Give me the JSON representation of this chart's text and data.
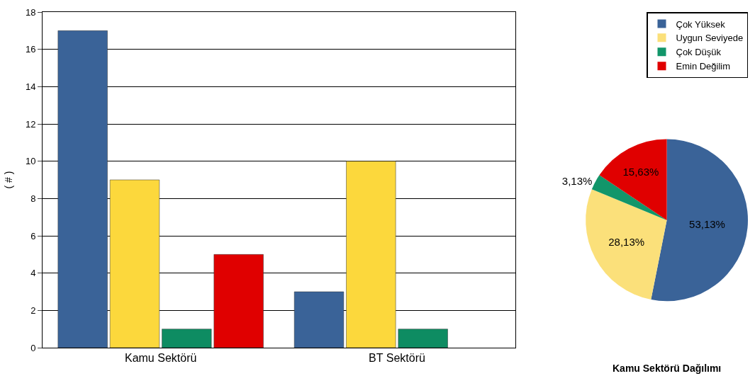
{
  "chart_data": [
    {
      "type": "bar",
      "ylabel": "( # )",
      "categories": [
        "Kamu Sektörü",
        "BT Sektörü"
      ],
      "series": [
        {
          "color": "#3a6398",
          "values": [
            17,
            3
          ]
        },
        {
          "color": "#fcd83c",
          "values": [
            9,
            10
          ]
        },
        {
          "color": "#0e8c62",
          "values": [
            1,
            1
          ]
        },
        {
          "color": "#e00000",
          "values": [
            5,
            null
          ]
        }
      ],
      "ylim": [
        0,
        18
      ],
      "yticks": [
        0,
        2,
        4,
        6,
        8,
        10,
        12,
        14,
        16,
        18
      ],
      "grid": "y"
    },
    {
      "type": "pie",
      "title": "Kamu Sektörü Dağılımı",
      "categories": [
        "Çok Yüksek",
        "Uygun Seviyede",
        "Çok Düşük",
        "Emin Değilim"
      ],
      "values": [
        53.13,
        28.13,
        3.13,
        15.63
      ],
      "value_labels": [
        "53,13%",
        "28,13%",
        "3,13%",
        "15,63%"
      ],
      "colors": [
        "#3a6398",
        "#fbe07a",
        "#12966a",
        "#e00000"
      ],
      "legend": "top right"
    }
  ]
}
